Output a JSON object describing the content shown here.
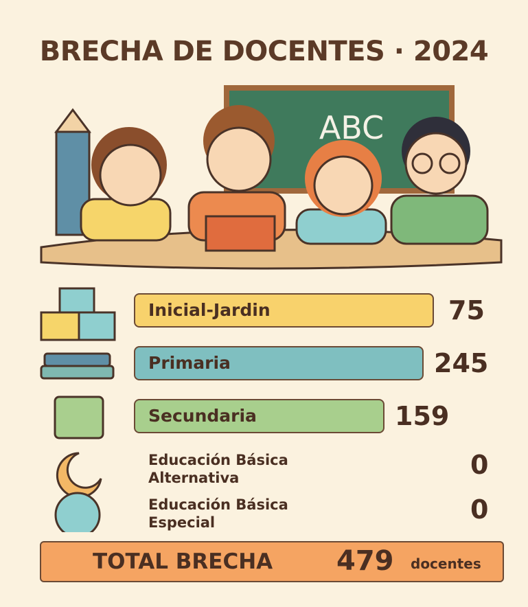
{
  "header": {
    "title": "BRECHA DE DOCENTES · 2024"
  },
  "illustration": {
    "board_text": "ABC"
  },
  "items": [
    {
      "label": "Inicial-Jardin",
      "value": 75
    },
    {
      "label": "Primaria",
      "value": 245
    },
    {
      "label": "Secundaria",
      "value": 159
    },
    {
      "label": "Educación Básica Alternativa",
      "value": 0
    },
    {
      "label": "Educación Básica Especial",
      "value": 0
    }
  ],
  "total": {
    "label": "TOTAL BRECHA",
    "value": 479,
    "unit": "docentes"
  }
}
